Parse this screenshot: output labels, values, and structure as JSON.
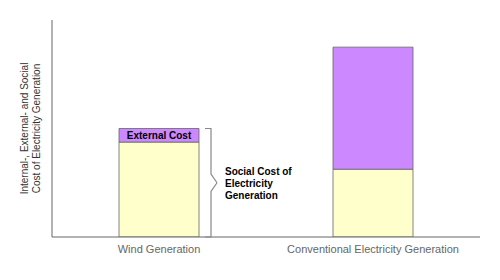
{
  "chart_data": {
    "type": "bar",
    "ylabel": "Internal-, External- and Social\nCost of Electricity Generation",
    "categories": [
      "Wind Generation",
      "Conventional Electricity Generation"
    ],
    "series": [
      {
        "color": "#ffffcc",
        "values": [
          3.5,
          2.5
        ]
      },
      {
        "color": "#cc88ff",
        "values": [
          0.5,
          4.5
        ]
      }
    ],
    "stacked": true,
    "ylim": [
      0,
      8.0
    ],
    "tick_labels": "x",
    "grid": false,
    "annotations": [
      {
        "text": "External Cost",
        "x": "Wind Generation"
      },
      {
        "text": "Social Cost of\nElectricity\nGeneration",
        "x": "Wind Generation"
      }
    ]
  }
}
